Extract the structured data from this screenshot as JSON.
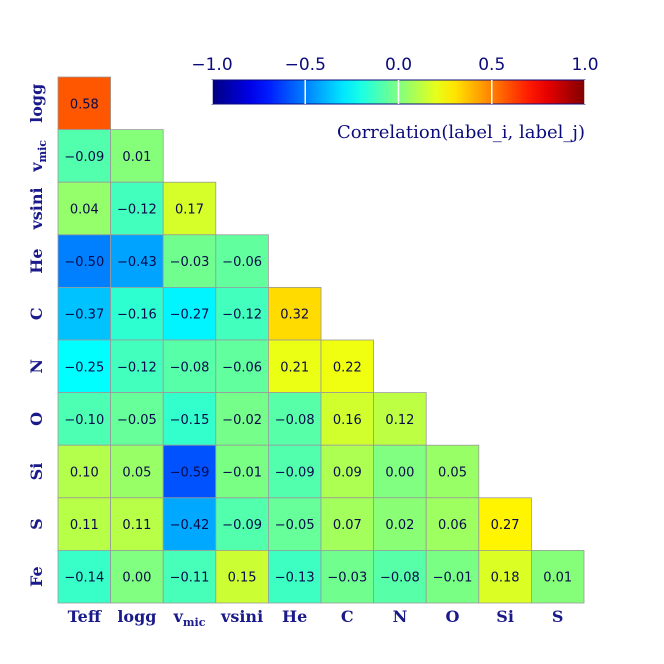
{
  "chart_data": {
    "type": "heatmap",
    "labels": [
      "Teff",
      "logg",
      "v_mic",
      "vsini",
      "He",
      "C",
      "N",
      "O",
      "Si",
      "S",
      "Fe"
    ],
    "label_display": [
      {
        "main": "Teff",
        "sub": ""
      },
      {
        "main": "logg",
        "sub": ""
      },
      {
        "main": "v",
        "sub": "mic"
      },
      {
        "main": "vsini",
        "sub": ""
      },
      {
        "main": "He",
        "sub": ""
      },
      {
        "main": "C",
        "sub": ""
      },
      {
        "main": "N",
        "sub": ""
      },
      {
        "main": "O",
        "sub": ""
      },
      {
        "main": "Si",
        "sub": ""
      },
      {
        "main": "S",
        "sub": ""
      },
      {
        "main": "Fe",
        "sub": ""
      }
    ],
    "matrix": [
      [
        0.58
      ],
      [
        -0.09,
        0.01
      ],
      [
        0.04,
        -0.12,
        0.17
      ],
      [
        -0.5,
        -0.43,
        -0.03,
        -0.06
      ],
      [
        -0.37,
        -0.16,
        -0.27,
        -0.12,
        0.32
      ],
      [
        -0.25,
        -0.12,
        -0.08,
        -0.06,
        0.21,
        0.22
      ],
      [
        -0.1,
        -0.05,
        -0.15,
        -0.02,
        -0.08,
        0.16,
        0.12
      ],
      [
        0.1,
        0.05,
        -0.59,
        -0.01,
        -0.09,
        0.09,
        0.0,
        0.05
      ],
      [
        0.11,
        0.11,
        -0.42,
        -0.09,
        -0.05,
        0.07,
        0.02,
        0.06,
        0.27
      ],
      [
        -0.14,
        0.0,
        -0.11,
        0.15,
        -0.13,
        -0.03,
        -0.08,
        -0.01,
        0.18,
        0.01
      ]
    ],
    "colorbar": {
      "range": [
        -1.0,
        1.0
      ],
      "ticks": [
        -1.0,
        -0.5,
        0.0,
        0.5,
        1.0
      ],
      "tick_labels": [
        "−1.0",
        "−0.5",
        "0.0",
        "0.5",
        "1.0"
      ],
      "title": "Correlation(label_i, label_j)",
      "colormap": "jet"
    }
  }
}
